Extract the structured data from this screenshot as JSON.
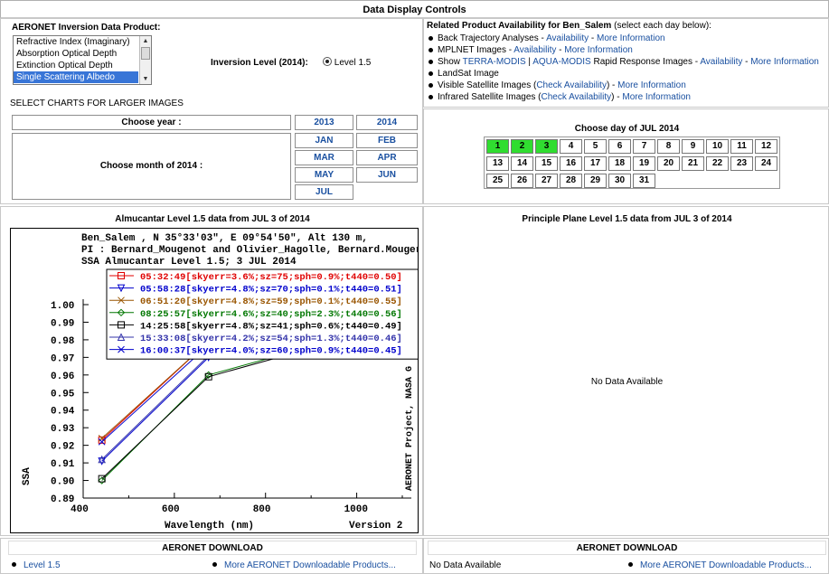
{
  "header": {
    "title": "Data Display Controls"
  },
  "inversion": {
    "label": "AERONET Inversion Data Product:",
    "options": [
      "Refractive Index (Imaginary)",
      "Absorption Optical Depth",
      "Extinction Optical Depth",
      "Single Scattering Albedo"
    ],
    "selected_index": 3,
    "level_label": "Inversion Level (2014):",
    "level_value": "Level 1.5"
  },
  "select_charts_label": "SELECT CHARTS FOR LARGER IMAGES",
  "year": {
    "label": "Choose year :",
    "options": [
      "2013",
      "2014"
    ]
  },
  "month": {
    "label": "Choose month of 2014 :",
    "options": [
      "JAN",
      "FEB",
      "MAR",
      "APR",
      "MAY",
      "JUN",
      "JUL"
    ]
  },
  "related": {
    "title_prefix": "Related Product Availability for Ben_Salem",
    "title_suffix": "(select each day below):",
    "items": [
      {
        "pre": "Back Trajectory Analyses - ",
        "links": [
          "Availability",
          "More Information"
        ]
      },
      {
        "pre": "MPLNET Images - ",
        "links": [
          "Availability",
          "More Information"
        ]
      },
      {
        "pre": "Show ",
        "mid_links": [
          "TERRA-MODIS",
          "AQUA-MODIS"
        ],
        "mid_text": " Rapid Response Images - ",
        "links": [
          "Availability",
          "More Information"
        ]
      },
      {
        "pre": "LandSat Image",
        "links": []
      },
      {
        "pre": "Visible Satellite Images (",
        "paren_link": "Check Availability",
        "post": ") - ",
        "links": [
          "More Information"
        ]
      },
      {
        "pre": "Infrared Satellite Images (",
        "paren_link": "Check Availability",
        "post": ") - ",
        "links": [
          "More Information"
        ]
      }
    ]
  },
  "calendar": {
    "title": "Choose day of JUL 2014",
    "days": [
      "1",
      "2",
      "3",
      "4",
      "5",
      "6",
      "7",
      "8",
      "9",
      "10",
      "11",
      "12",
      "13",
      "14",
      "15",
      "16",
      "17",
      "18",
      "19",
      "20",
      "21",
      "22",
      "23",
      "24",
      "25",
      "26",
      "27",
      "28",
      "29",
      "30",
      "31"
    ],
    "available": [
      "1",
      "2",
      "3"
    ],
    "available_color": "#30dd30"
  },
  "almucantar": {
    "title": "Almucantar Level 1.5 data from JUL 3 of 2014",
    "plot_header": [
      "Ben_Salem , N 35°33'03\", E 09°54'50\", Alt 130 m,",
      "PI : Bernard_Mougenot and Olivier_Hagolle, Bernard.Mouger",
      "SSA Almucantar Level 1.5; 3 JUL 2014"
    ],
    "right_label": "AERONET Project, NASA G",
    "version": "Version 2"
  },
  "principal": {
    "title": "Principle Plane Level 1.5 data from JUL 3 of 2014",
    "no_data": "No Data Available"
  },
  "download_left": {
    "title": "AERONET DOWNLOAD",
    "link1": "Level 1.5",
    "link2": "More AERONET Downloadable Products..."
  },
  "download_right": {
    "title": "AERONET DOWNLOAD",
    "text1": "No Data Available",
    "link2": "More AERONET Downloadable Products..."
  },
  "chart_data": {
    "type": "line",
    "title": "SSA Almucantar Level 1.5; 3 JUL 2014",
    "xlabel": "Wavelength (nm)",
    "ylabel": "SSA",
    "xlim": [
      400,
      1100
    ],
    "ylim": [
      0.89,
      1.0
    ],
    "xticks": [
      400,
      600,
      800,
      1000
    ],
    "yticks": [
      0.89,
      0.9,
      0.91,
      0.92,
      0.93,
      0.94,
      0.95,
      0.96,
      0.97,
      0.98,
      0.99,
      1.0
    ],
    "x": [
      441,
      675,
      870,
      1020
    ],
    "series": [
      {
        "name": "05:32:49[skyerr=3.6%;sz=75;sph=0.9%;t440=0.50]",
        "color": "#e00000",
        "marker": "square",
        "values": [
          0.923,
          0.979,
          0.985,
          0.986
        ]
      },
      {
        "name": "05:58:28[skyerr=4.8%;sz=70;sph=0.1%;t440=0.51]",
        "color": "#0000cc",
        "marker": "tri-down",
        "values": [
          0.911,
          0.97,
          0.978,
          0.98
        ]
      },
      {
        "name": "06:51:20[skyerr=4.8%;sz=59;sph=0.1%;t440=0.55]",
        "color": "#995500",
        "marker": "x",
        "values": [
          0.924,
          0.979,
          0.985,
          0.986
        ]
      },
      {
        "name": "08:25:57[skyerr=4.6%;sz=40;sph=2.3%;t440=0.56]",
        "color": "#007700",
        "marker": "diamond",
        "values": [
          0.9,
          0.96,
          0.974,
          0.977
        ]
      },
      {
        "name": "14:25:58[skyerr=4.8%;sz=41;sph=0.6%;t440=0.49]",
        "color": "#000000",
        "marker": "square",
        "values": [
          0.901,
          0.959,
          0.973,
          0.976
        ]
      },
      {
        "name": "15:33:08[skyerr=4.2%;sz=54;sph=1.3%;t440=0.46]",
        "color": "#3333aa",
        "marker": "tri-up",
        "values": [
          0.912,
          0.971,
          0.979,
          0.981
        ]
      },
      {
        "name": "16:00:37[skyerr=4.0%;sz=60;sph=0.9%;t440=0.45]",
        "color": "#0000cc",
        "marker": "x",
        "values": [
          0.922,
          0.977,
          0.984,
          0.985
        ]
      }
    ]
  }
}
